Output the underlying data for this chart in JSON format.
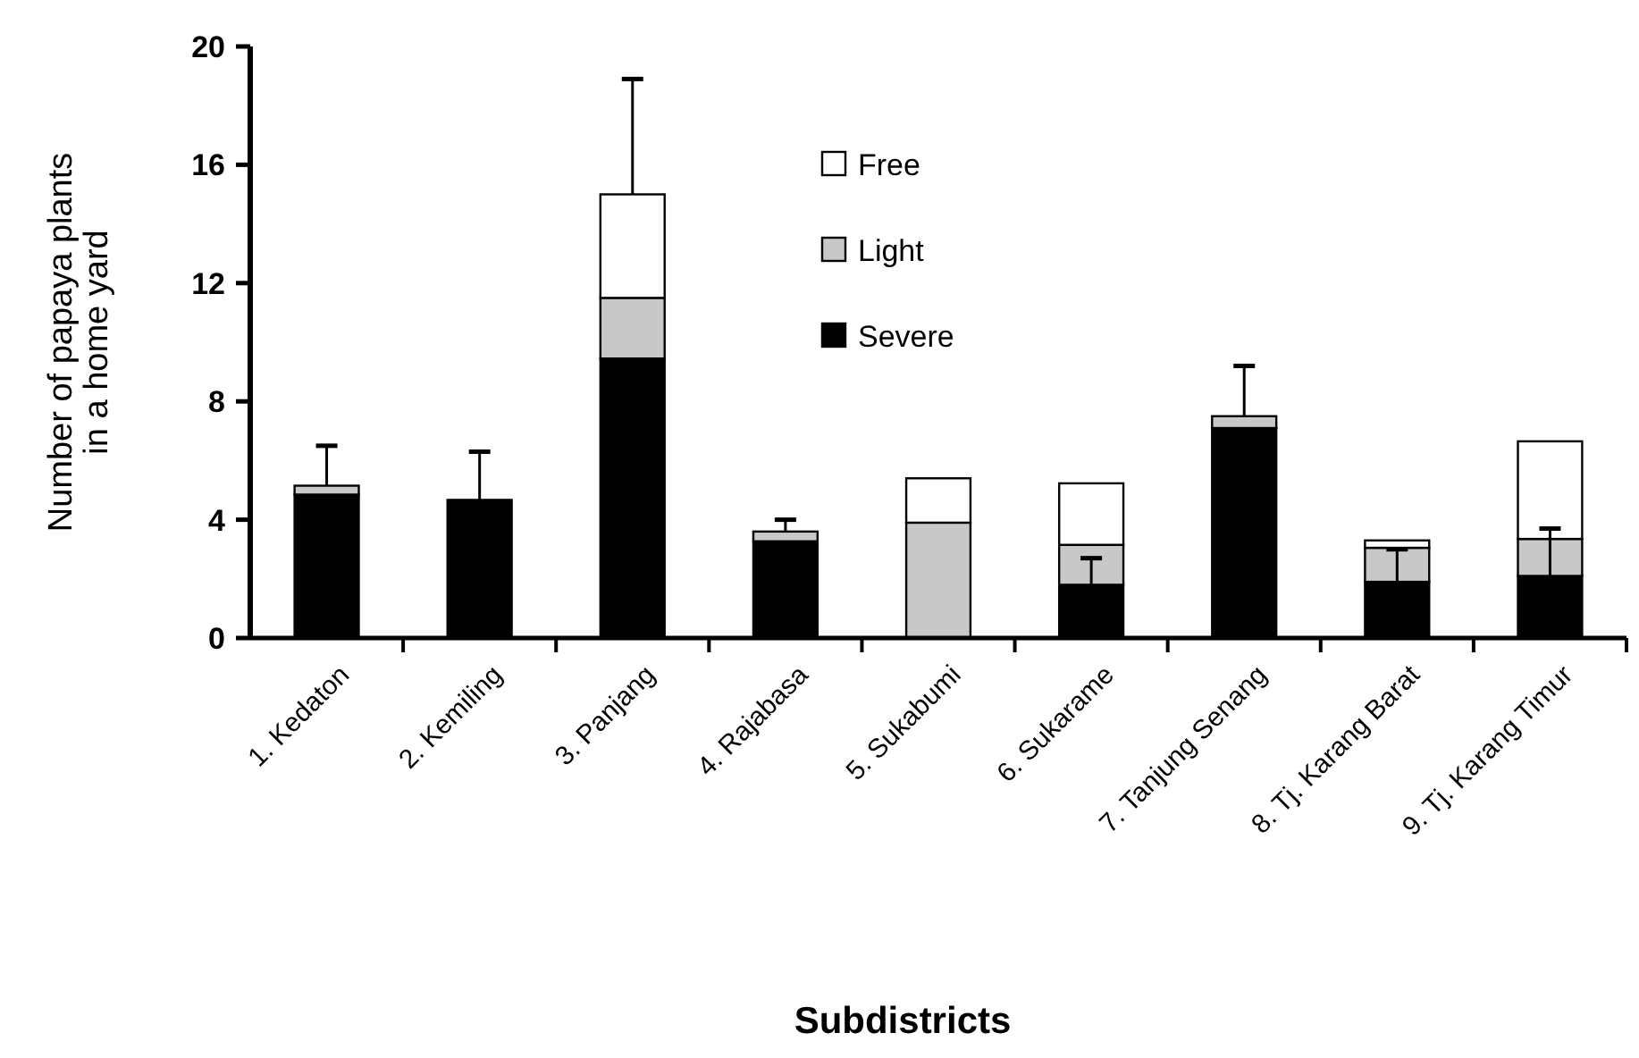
{
  "chart_data": {
    "type": "bar",
    "stacked": true,
    "ylabel": "Number of papaya plants\nin a home yard",
    "xlabel": "Subdistricts",
    "categories": [
      "1. Kedaton",
      "2. Kemiling",
      "3. Panjang",
      "4. Rajabasa",
      "5. Sukabumi",
      "6. Sukarame",
      "7. Tanjung Senang",
      "8. Tj. Karang Barat",
      "9. Tj. Karang Timur"
    ],
    "series": [
      {
        "name": "Severe",
        "color": "#000000",
        "values": [
          4.85,
          4.67,
          9.45,
          3.27,
          0,
          1.8,
          7.1,
          1.9,
          2.1
        ],
        "errors": [
          null,
          [
            4.67,
            6.3
          ],
          null,
          null,
          null,
          [
            1.8,
            2.7
          ],
          null,
          [
            1.9,
            3.0
          ],
          [
            2.1,
            3.7
          ]
        ]
      },
      {
        "name": "Light",
        "color": "#c8c8c8",
        "values": [
          0.3,
          0,
          2.05,
          0.33,
          3.9,
          1.35,
          0.4,
          1.15,
          1.25
        ],
        "errors": [
          [
            5.15,
            6.5
          ],
          null,
          null,
          [
            3.6,
            4.0
          ],
          null,
          null,
          [
            7.5,
            9.2
          ],
          null,
          null
        ]
      },
      {
        "name": "Free",
        "color": "#ffffff",
        "values": [
          0,
          0,
          3.5,
          0,
          1.5,
          2.08,
          0,
          0.25,
          3.3
        ],
        "errors": [
          null,
          null,
          [
            15,
            18.9
          ],
          null,
          null,
          null,
          null,
          null,
          null
        ]
      }
    ],
    "ylim": [
      0,
      20
    ],
    "yticks": [
      0,
      4,
      8,
      12,
      16,
      20
    ],
    "legend": "top",
    "grid": false
  }
}
